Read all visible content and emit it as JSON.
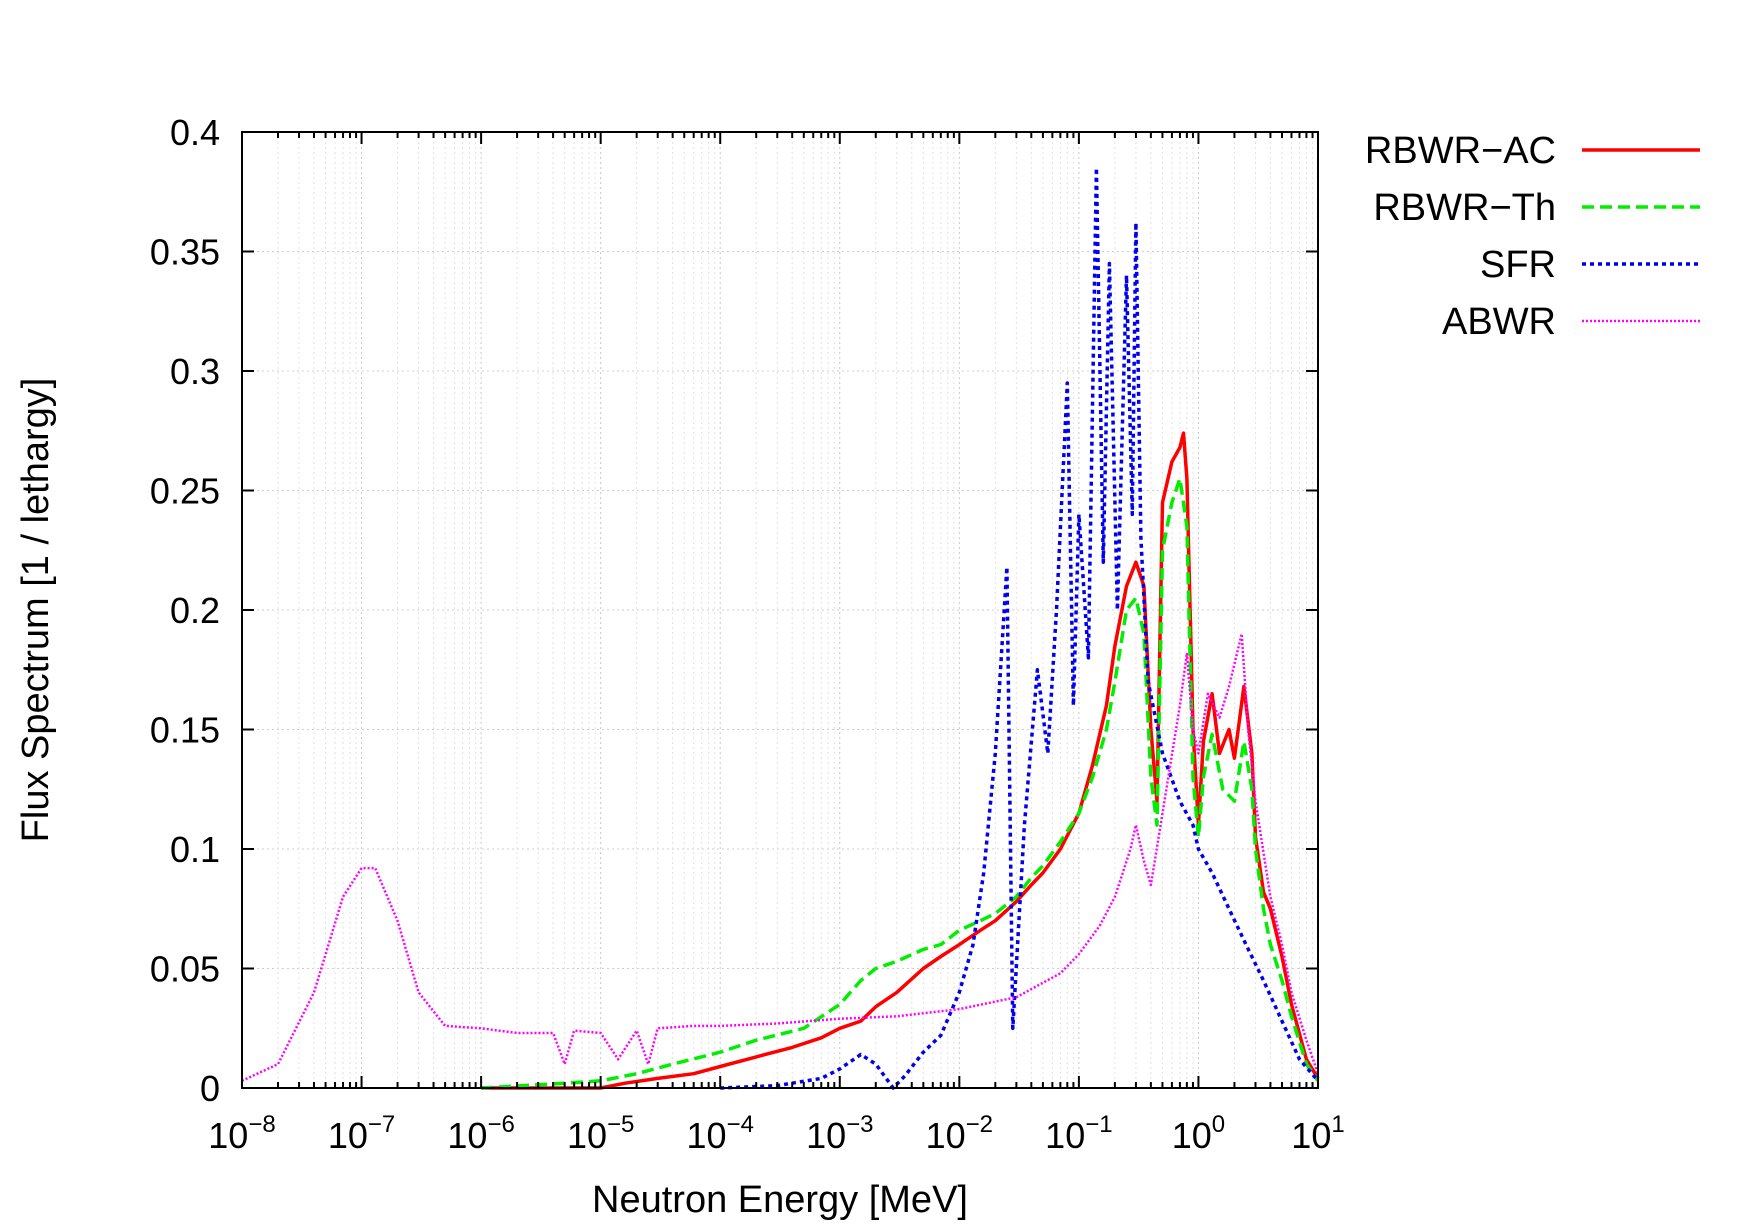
{
  "chart_data": {
    "type": "line",
    "title": "",
    "xlabel": "Neutron Energy [MeV]",
    "ylabel": "Flux Spectrum [1 / lethargy]",
    "xscale": "log",
    "xlim": [
      1e-08,
      10
    ],
    "ylim": [
      0,
      0.4
    ],
    "grid": true,
    "legend_position": "outside-top-right",
    "x_ticks": [
      {
        "base": "10",
        "exp": "−8"
      },
      {
        "base": "10",
        "exp": "−7"
      },
      {
        "base": "10",
        "exp": "−6"
      },
      {
        "base": "10",
        "exp": "−5"
      },
      {
        "base": "10",
        "exp": "−4"
      },
      {
        "base": "10",
        "exp": "−3"
      },
      {
        "base": "10",
        "exp": "−2"
      },
      {
        "base": "10",
        "exp": "−1"
      },
      {
        "base": "10",
        "exp": "0"
      },
      {
        "base": "10",
        "exp": "1"
      }
    ],
    "y_ticks": [
      "0",
      "0.05",
      "0.1",
      "0.15",
      "0.2",
      "0.25",
      "0.3",
      "0.35",
      "0.4"
    ],
    "series": [
      {
        "name": "RBWR−AC",
        "color": "#ff0000",
        "dash": "solid",
        "points": [
          [
            1e-06,
            0
          ],
          [
            1e-05,
            0.0
          ],
          [
            1.6e-05,
            0.002
          ],
          [
            3e-05,
            0.004
          ],
          [
            6e-05,
            0.006
          ],
          [
            0.0001,
            0.009
          ],
          [
            0.0002,
            0.013
          ],
          [
            0.0004,
            0.017
          ],
          [
            0.0007,
            0.021
          ],
          [
            0.001,
            0.025
          ],
          [
            0.0015,
            0.028
          ],
          [
            0.002,
            0.034
          ],
          [
            0.003,
            0.04
          ],
          [
            0.005,
            0.05
          ],
          [
            0.007,
            0.055
          ],
          [
            0.01,
            0.06
          ],
          [
            0.015,
            0.066
          ],
          [
            0.02,
            0.07
          ],
          [
            0.03,
            0.078
          ],
          [
            0.04,
            0.085
          ],
          [
            0.05,
            0.09
          ],
          [
            0.07,
            0.1
          ],
          [
            0.1,
            0.115
          ],
          [
            0.13,
            0.135
          ],
          [
            0.17,
            0.16
          ],
          [
            0.2,
            0.185
          ],
          [
            0.25,
            0.21
          ],
          [
            0.3,
            0.22
          ],
          [
            0.35,
            0.21
          ],
          [
            0.4,
            0.15
          ],
          [
            0.45,
            0.12
          ],
          [
            0.5,
            0.245
          ],
          [
            0.6,
            0.262
          ],
          [
            0.7,
            0.268
          ],
          [
            0.75,
            0.274
          ],
          [
            0.8,
            0.255
          ],
          [
            0.9,
            0.15
          ],
          [
            1.0,
            0.11
          ],
          [
            1.1,
            0.145
          ],
          [
            1.3,
            0.165
          ],
          [
            1.5,
            0.14
          ],
          [
            1.8,
            0.15
          ],
          [
            2.0,
            0.138
          ],
          [
            2.4,
            0.168
          ],
          [
            2.8,
            0.14
          ],
          [
            3.0,
            0.105
          ],
          [
            3.5,
            0.082
          ],
          [
            4.0,
            0.075
          ],
          [
            5.0,
            0.055
          ],
          [
            6.0,
            0.035
          ],
          [
            8.0,
            0.012
          ],
          [
            10,
            0.004
          ]
        ]
      },
      {
        "name": "RBWR−Th",
        "color": "#00ee00",
        "dash": "dashed",
        "points": [
          [
            1e-06,
            0
          ],
          [
            5e-06,
            0.002
          ],
          [
            1e-05,
            0.003
          ],
          [
            2e-05,
            0.006
          ],
          [
            4e-05,
            0.01
          ],
          [
            0.0001,
            0.015
          ],
          [
            0.0002,
            0.02
          ],
          [
            0.0005,
            0.025
          ],
          [
            0.001,
            0.035
          ],
          [
            0.0015,
            0.045
          ],
          [
            0.002,
            0.05
          ],
          [
            0.003,
            0.053
          ],
          [
            0.005,
            0.058
          ],
          [
            0.007,
            0.06
          ],
          [
            0.01,
            0.066
          ],
          [
            0.015,
            0.07
          ],
          [
            0.02,
            0.073
          ],
          [
            0.03,
            0.08
          ],
          [
            0.04,
            0.088
          ],
          [
            0.05,
            0.093
          ],
          [
            0.07,
            0.103
          ],
          [
            0.1,
            0.115
          ],
          [
            0.13,
            0.13
          ],
          [
            0.17,
            0.15
          ],
          [
            0.2,
            0.17
          ],
          [
            0.25,
            0.2
          ],
          [
            0.3,
            0.205
          ],
          [
            0.35,
            0.19
          ],
          [
            0.4,
            0.13
          ],
          [
            0.45,
            0.11
          ],
          [
            0.5,
            0.225
          ],
          [
            0.6,
            0.245
          ],
          [
            0.7,
            0.255
          ],
          [
            0.8,
            0.235
          ],
          [
            0.9,
            0.13
          ],
          [
            1.0,
            0.105
          ],
          [
            1.1,
            0.13
          ],
          [
            1.3,
            0.148
          ],
          [
            1.6,
            0.125
          ],
          [
            2.0,
            0.12
          ],
          [
            2.4,
            0.145
          ],
          [
            2.8,
            0.125
          ],
          [
            3.0,
            0.1
          ],
          [
            3.5,
            0.075
          ],
          [
            4.0,
            0.06
          ],
          [
            5.0,
            0.045
          ],
          [
            6.0,
            0.03
          ],
          [
            8.0,
            0.01
          ],
          [
            10,
            0.003
          ]
        ]
      },
      {
        "name": "SFR",
        "color": "#0000ee",
        "dash": "dotted",
        "points": [
          [
            0.0001,
            0
          ],
          [
            0.0003,
            0.001
          ],
          [
            0.0007,
            0.004
          ],
          [
            0.001,
            0.008
          ],
          [
            0.0015,
            0.014
          ],
          [
            0.002,
            0.01
          ],
          [
            0.0028,
            0.0
          ],
          [
            0.0035,
            0.005
          ],
          [
            0.005,
            0.015
          ],
          [
            0.007,
            0.022
          ],
          [
            0.01,
            0.04
          ],
          [
            0.013,
            0.06
          ],
          [
            0.016,
            0.09
          ],
          [
            0.02,
            0.14
          ],
          [
            0.025,
            0.218
          ],
          [
            0.028,
            0.025
          ],
          [
            0.035,
            0.11
          ],
          [
            0.045,
            0.175
          ],
          [
            0.055,
            0.14
          ],
          [
            0.065,
            0.2
          ],
          [
            0.08,
            0.295
          ],
          [
            0.09,
            0.16
          ],
          [
            0.1,
            0.24
          ],
          [
            0.12,
            0.18
          ],
          [
            0.14,
            0.385
          ],
          [
            0.16,
            0.22
          ],
          [
            0.18,
            0.345
          ],
          [
            0.21,
            0.2
          ],
          [
            0.25,
            0.34
          ],
          [
            0.28,
            0.24
          ],
          [
            0.3,
            0.362
          ],
          [
            0.33,
            0.23
          ],
          [
            0.38,
            0.17
          ],
          [
            0.5,
            0.14
          ],
          [
            0.7,
            0.12
          ],
          [
            0.9,
            0.11
          ],
          [
            1.0,
            0.1
          ],
          [
            1.3,
            0.09
          ],
          [
            1.8,
            0.075
          ],
          [
            2.5,
            0.06
          ],
          [
            3.5,
            0.045
          ],
          [
            5.0,
            0.028
          ],
          [
            7.0,
            0.012
          ],
          [
            10,
            0.003
          ]
        ]
      },
      {
        "name": "ABWR",
        "color": "#ff00ff",
        "dash": "dotted-fine",
        "points": [
          [
            1e-08,
            0.003
          ],
          [
            2e-08,
            0.01
          ],
          [
            4e-08,
            0.04
          ],
          [
            7e-08,
            0.08
          ],
          [
            1e-07,
            0.092
          ],
          [
            1.3e-07,
            0.092
          ],
          [
            2e-07,
            0.07
          ],
          [
            3e-07,
            0.04
          ],
          [
            5e-07,
            0.026
          ],
          [
            1e-06,
            0.025
          ],
          [
            2e-06,
            0.023
          ],
          [
            4e-06,
            0.023
          ],
          [
            5e-06,
            0.01
          ],
          [
            6e-06,
            0.024
          ],
          [
            1e-05,
            0.023
          ],
          [
            1.4e-05,
            0.012
          ],
          [
            2e-05,
            0.024
          ],
          [
            2.5e-05,
            0.01
          ],
          [
            3e-05,
            0.025
          ],
          [
            6e-05,
            0.026
          ],
          [
            0.0001,
            0.026
          ],
          [
            0.0003,
            0.027
          ],
          [
            0.001,
            0.029
          ],
          [
            0.003,
            0.03
          ],
          [
            0.01,
            0.033
          ],
          [
            0.03,
            0.038
          ],
          [
            0.07,
            0.048
          ],
          [
            0.1,
            0.056
          ],
          [
            0.15,
            0.068
          ],
          [
            0.2,
            0.08
          ],
          [
            0.27,
            0.1
          ],
          [
            0.3,
            0.11
          ],
          [
            0.35,
            0.095
          ],
          [
            0.4,
            0.085
          ],
          [
            0.5,
            0.115
          ],
          [
            0.7,
            0.16
          ],
          [
            0.8,
            0.182
          ],
          [
            0.9,
            0.15
          ],
          [
            1.0,
            0.14
          ],
          [
            1.2,
            0.165
          ],
          [
            1.5,
            0.155
          ],
          [
            1.8,
            0.168
          ],
          [
            2.3,
            0.19
          ],
          [
            2.6,
            0.15
          ],
          [
            3.0,
            0.12
          ],
          [
            4.0,
            0.08
          ],
          [
            5.0,
            0.06
          ],
          [
            6.0,
            0.04
          ],
          [
            8.0,
            0.02
          ],
          [
            10,
            0.006
          ]
        ]
      }
    ]
  }
}
